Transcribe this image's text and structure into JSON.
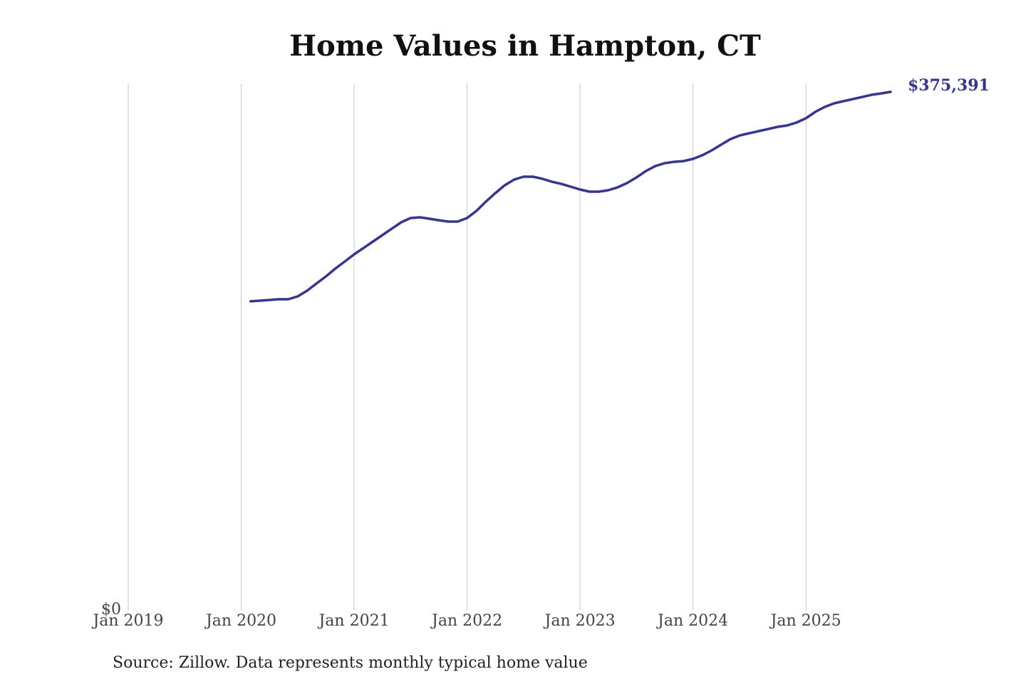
{
  "chart_data": {
    "type": "line",
    "title": "Home Values in Hampton, CT",
    "source": "Source: Zillow. Data represents monthly typical home value",
    "x": [
      "2020-02",
      "2020-03",
      "2020-04",
      "2020-05",
      "2020-06",
      "2020-07",
      "2020-08",
      "2020-09",
      "2020-10",
      "2020-11",
      "2020-12",
      "2021-01",
      "2021-02",
      "2021-03",
      "2021-04",
      "2021-05",
      "2021-06",
      "2021-07",
      "2021-08",
      "2021-09",
      "2021-10",
      "2021-11",
      "2021-12",
      "2022-01",
      "2022-02",
      "2022-03",
      "2022-04",
      "2022-05",
      "2022-06",
      "2022-07",
      "2022-08",
      "2022-09",
      "2022-10",
      "2022-11",
      "2022-12",
      "2023-01",
      "2023-02",
      "2023-03",
      "2023-04",
      "2023-05",
      "2023-06",
      "2023-07",
      "2023-08",
      "2023-09",
      "2023-10",
      "2023-11",
      "2023-12",
      "2024-01",
      "2024-02",
      "2024-03",
      "2024-04",
      "2024-05",
      "2024-06",
      "2024-07",
      "2024-08",
      "2024-09",
      "2024-10",
      "2024-11",
      "2024-12",
      "2025-01",
      "2025-02",
      "2025-03",
      "2025-04",
      "2025-05",
      "2025-06",
      "2025-07",
      "2025-08",
      "2025-09",
      "2025-10"
    ],
    "series": [
      {
        "name": "Home value",
        "color": "#35349a",
        "values": [
          223800,
          224300,
          224800,
          225300,
          225300,
          227400,
          231500,
          236700,
          241800,
          247500,
          252600,
          257800,
          262400,
          267100,
          271700,
          276400,
          281000,
          284100,
          284600,
          283600,
          282500,
          281500,
          281500,
          284100,
          289300,
          296000,
          302100,
          307800,
          311900,
          314000,
          314000,
          312500,
          310400,
          308800,
          306800,
          304700,
          303200,
          303200,
          304200,
          306300,
          309400,
          313500,
          318100,
          321700,
          323800,
          324800,
          325300,
          326900,
          329500,
          333100,
          337200,
          341300,
          343900,
          345500,
          347000,
          348500,
          350100,
          351100,
          353200,
          356300,
          360900,
          364500,
          367100,
          368700,
          370200,
          371700,
          373300,
          374300,
          375391
        ],
        "value_labels": [
          null,
          null,
          null,
          null,
          null,
          null,
          null,
          null,
          null,
          null,
          null,
          null,
          null,
          null,
          null,
          null,
          null,
          null,
          null,
          null,
          null,
          null,
          null,
          null,
          null,
          null,
          null,
          null,
          null,
          null,
          null,
          null,
          null,
          null,
          null,
          null,
          null,
          null,
          null,
          null,
          null,
          null,
          null,
          null,
          null,
          null,
          null,
          null,
          null,
          null,
          null,
          null,
          null,
          null,
          null,
          null,
          null,
          null,
          null,
          null,
          null,
          null,
          null,
          null,
          null,
          null,
          null,
          null,
          "$375,391"
        ]
      }
    ],
    "xlim": [
      "2019-01",
      "2025-10"
    ],
    "xticks": [
      {
        "value": "2019-01",
        "label": "Jan 2019"
      },
      {
        "value": "2020-01",
        "label": "Jan 2020"
      },
      {
        "value": "2021-01",
        "label": "Jan 2021"
      },
      {
        "value": "2022-01",
        "label": "Jan 2022"
      },
      {
        "value": "2023-01",
        "label": "Jan 2023"
      },
      {
        "value": "2024-01",
        "label": "Jan 2024"
      },
      {
        "value": "2025-01",
        "label": "Jan 2025"
      }
    ],
    "ylim": [
      0,
      380000
    ],
    "yticks": [
      {
        "value": 0,
        "label": "$0"
      }
    ],
    "grid": true
  }
}
